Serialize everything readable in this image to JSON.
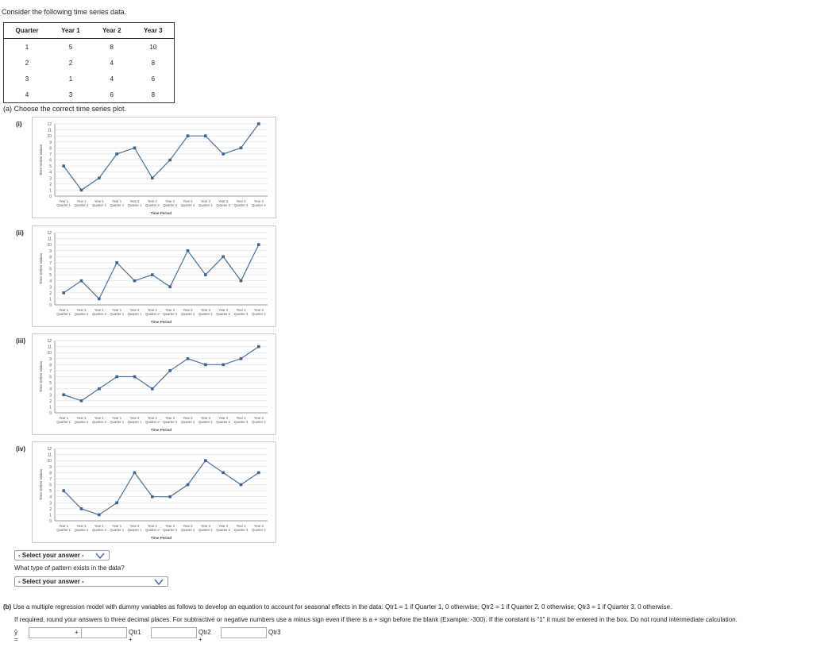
{
  "intro": "Consider the following time series data.",
  "table": {
    "headers": [
      "Quarter",
      "Year 1",
      "Year 2",
      "Year 3"
    ],
    "rows": [
      [
        "1",
        "5",
        "8",
        "10"
      ],
      [
        "2",
        "2",
        "4",
        "8"
      ],
      [
        "3",
        "1",
        "4",
        "6"
      ],
      [
        "4",
        "3",
        "6",
        "8"
      ]
    ]
  },
  "part_a": {
    "prompt": "(a) Choose the correct time series plot.",
    "options": [
      "(i)",
      "(ii)",
      "(iii)",
      "(iv)"
    ],
    "select1_label": "- Select your answer -",
    "pattern_question": "What type of pattern exists in the data?",
    "select2_label": "- Select your answer -"
  },
  "part_b": {
    "label": "(b)",
    "text": "Use a multiple regression model with dummy variables as follows to develop an equation to account for seasonal effects in the data: Qtr1 = 1 if Quarter 1, 0 otherwise; Qtr2 = 1 if Quarter 2, 0 otherwise; Qtr3 = 1 if Quarter 3, 0 otherwise.",
    "instructions": "If required, round your answers to three decimal places. For subtractive or negative numbers use a minus sign even if there is a + sign before the blank (Example: -300). If the constant is \"1\" it must be entered in the box. Do not round intermediate calculation.",
    "yhat": "ŷ =",
    "plus": "+",
    "qtr1": "Qtr1 +",
    "qtr2": "Qtr2 +",
    "qtr3": "Qtr3"
  },
  "chart_data": [
    {
      "type": "line",
      "option": "(i)",
      "categories": [
        "Year 1 Quarter 1",
        "Year 1 Quarter 2",
        "Year 1 Quarter 3",
        "Year 1 Quarter 4",
        "Year 2 Quarter 1",
        "Year 2 Quarter 2",
        "Year 2 Quarter 3",
        "Year 2 Quarter 4",
        "Year 3 Quarter 1",
        "Year 3 Quarter 2",
        "Year 3 Quarter 3",
        "Year 3 Quarter 4"
      ],
      "values": [
        5,
        1,
        3,
        7,
        8,
        3,
        6,
        10,
        10,
        7,
        8,
        12
      ],
      "xlabel": "Time Period",
      "ylabel": "Time Series Values",
      "ylim": [
        0,
        12
      ],
      "yticks": [
        "0",
        "1",
        "2",
        "3",
        "4",
        "5",
        "6",
        "7",
        "8",
        "9",
        "10",
        "11",
        "12"
      ],
      "grid": true,
      "color": "#4a6f9a"
    },
    {
      "type": "line",
      "option": "(ii)",
      "categories": [
        "Year 1 Quarter 1",
        "Year 1 Quarter 2",
        "Year 1 Quarter 3",
        "Year 1 Quarter 4",
        "Year 2 Quarter 1",
        "Year 2 Quarter 2",
        "Year 2 Quarter 3",
        "Year 2 Quarter 4",
        "Year 3 Quarter 1",
        "Year 3 Quarter 2",
        "Year 3 Quarter 3",
        "Year 3 Quarter 4"
      ],
      "values": [
        2,
        4,
        1,
        7,
        4,
        5,
        3,
        9,
        5,
        8,
        4,
        10
      ],
      "xlabel": "Time Period",
      "ylabel": "Time Series Values",
      "ylim": [
        0,
        12
      ],
      "yticks": [
        "0",
        "1",
        "2",
        "3",
        "4",
        "5",
        "6",
        "7",
        "8",
        "9",
        "10",
        "11",
        "12"
      ],
      "grid": true,
      "color": "#4a6f9a"
    },
    {
      "type": "line",
      "option": "(iii)",
      "categories": [
        "Year 1 Quarter 1",
        "Year 1 Quarter 2",
        "Year 1 Quarter 3",
        "Year 1 Quarter 4",
        "Year 2 Quarter 1",
        "Year 2 Quarter 2",
        "Year 2 Quarter 3",
        "Year 2 Quarter 4",
        "Year 3 Quarter 1",
        "Year 3 Quarter 2",
        "Year 3 Quarter 3",
        "Year 3 Quarter 4"
      ],
      "values": [
        3,
        2,
        4,
        6,
        6,
        4,
        7,
        9,
        8,
        8,
        9,
        11
      ],
      "xlabel": "Time Period",
      "ylabel": "Time Series Values",
      "ylim": [
        0,
        12
      ],
      "yticks": [
        "0",
        "1",
        "2",
        "3",
        "4",
        "5",
        "6",
        "7",
        "8",
        "9",
        "10",
        "11",
        "12"
      ],
      "grid": true,
      "color": "#4a6f9a"
    },
    {
      "type": "line",
      "option": "(iv)",
      "categories": [
        "Year 1 Quarter 1",
        "Year 1 Quarter 2",
        "Year 1 Quarter 3",
        "Year 1 Quarter 4",
        "Year 2 Quarter 1",
        "Year 2 Quarter 2",
        "Year 2 Quarter 3",
        "Year 2 Quarter 4",
        "Year 3 Quarter 1",
        "Year 3 Quarter 2",
        "Year 3 Quarter 3",
        "Year 3 Quarter 4"
      ],
      "values": [
        5,
        2,
        1,
        3,
        8,
        4,
        4,
        6,
        10,
        8,
        6,
        8
      ],
      "xlabel": "Time Period",
      "ylabel": "Time Series Values",
      "ylim": [
        0,
        12
      ],
      "yticks": [
        "0",
        "1",
        "2",
        "3",
        "4",
        "5",
        "6",
        "7",
        "8",
        "9",
        "10",
        "11",
        "12"
      ],
      "grid": true,
      "color": "#4a6f9a"
    }
  ],
  "icons": {
    "select_chevron": "chevron-down-icon"
  }
}
